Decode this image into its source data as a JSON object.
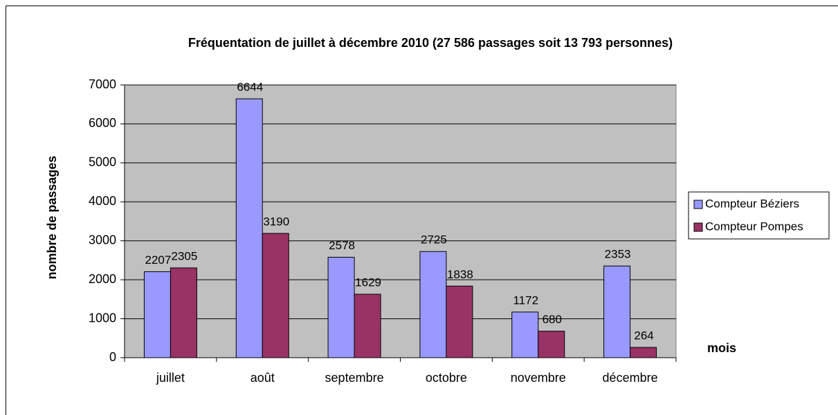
{
  "chart_data": {
    "type": "bar",
    "title": "Fréquentation de juillet à décembre 2010 (27 586 passages soit 13 793 personnes)",
    "y_label": "nombre de passages",
    "x_label": "mois",
    "categories": [
      "juillet",
      "août",
      "septembre",
      "octobre",
      "novembre",
      "décembre"
    ],
    "series": [
      {
        "name": "Compteur Béziers",
        "color": "#9999ff",
        "values": [
          2207,
          6644,
          2578,
          2725,
          1172,
          2353
        ]
      },
      {
        "name": "Compteur Pompes",
        "color": "#993366",
        "values": [
          2305,
          3190,
          1629,
          1838,
          680,
          264
        ]
      }
    ],
    "ylim": [
      0,
      7000
    ],
    "yticks": [
      0,
      1000,
      2000,
      3000,
      4000,
      5000,
      6000,
      7000
    ],
    "grid": true,
    "legend": "right",
    "plot_background": "#c0c0c0"
  }
}
